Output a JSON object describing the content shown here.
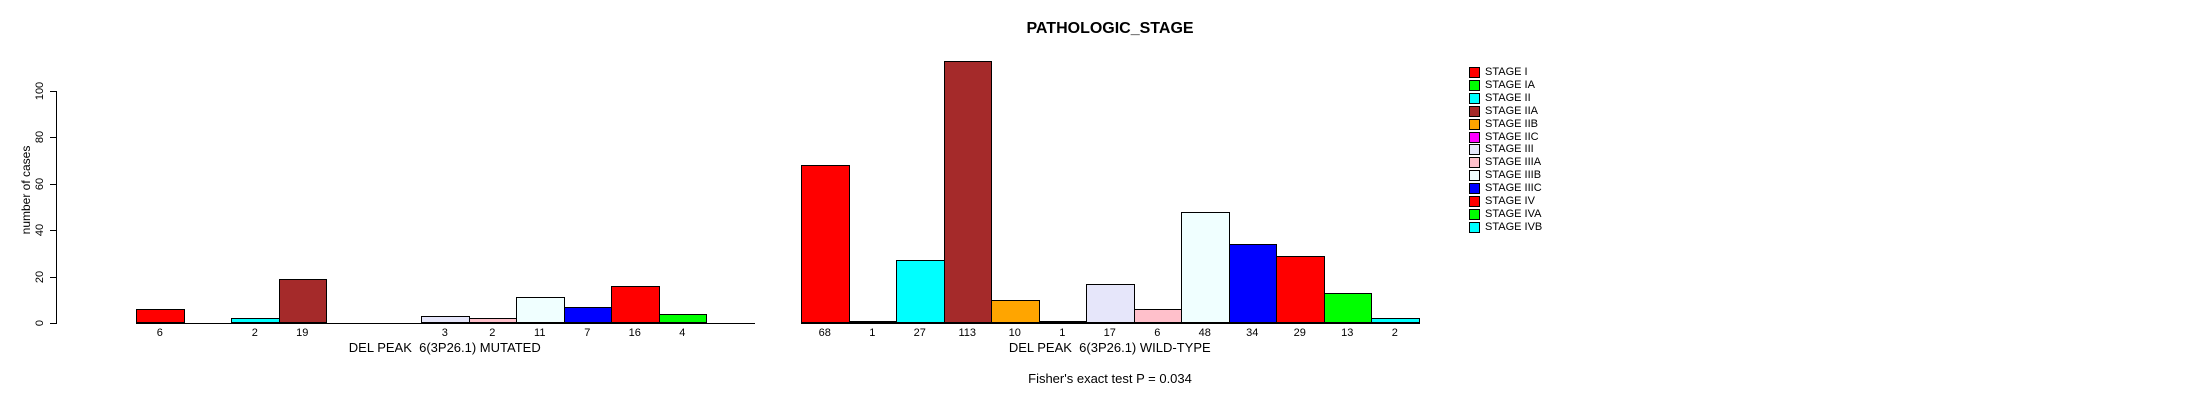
{
  "chart_data": {
    "type": "bar",
    "title": "PATHOLOGIC_STAGE",
    "ylabel": "number of cases",
    "ylim": [
      0,
      100
    ],
    "yticks": [
      0,
      20,
      40,
      60,
      80,
      100
    ],
    "grid": false,
    "legend_position": "right-inside",
    "bar_value_labels": "shown under each non-zero bar",
    "categories": [
      "STAGE I",
      "STAGE IA",
      "STAGE II",
      "STAGE IIA",
      "STAGE IIB",
      "STAGE IIC",
      "STAGE III",
      "STAGE IIIA",
      "STAGE IIIB",
      "STAGE IIIC",
      "STAGE IV",
      "STAGE IVA",
      "STAGE IVB"
    ],
    "colors": [
      "#FF0000",
      "#00FF00",
      "#00FFFF",
      "#A52A2A",
      "#FFA500",
      "#FF00FF",
      "#E6E6FA",
      "#FFC0CB",
      "#F0FFFF",
      "#0000FF",
      "#FF0000",
      "#00FF00",
      "#00FFFF"
    ],
    "series": [
      {
        "id": "mutated",
        "name": "DEL PEAK  6(3P26.1) MUTATED",
        "values": [
          6,
          0,
          2,
          19,
          0,
          0,
          3,
          2,
          11,
          7,
          16,
          4,
          0
        ]
      },
      {
        "id": "wild-type",
        "name": "DEL PEAK  6(3P26.1) WILD-TYPE",
        "values": [
          68,
          1,
          27,
          113,
          10,
          1,
          17,
          6,
          48,
          34,
          29,
          13,
          2
        ]
      }
    ],
    "annotation": "Fisher's exact test P = 0.034"
  }
}
